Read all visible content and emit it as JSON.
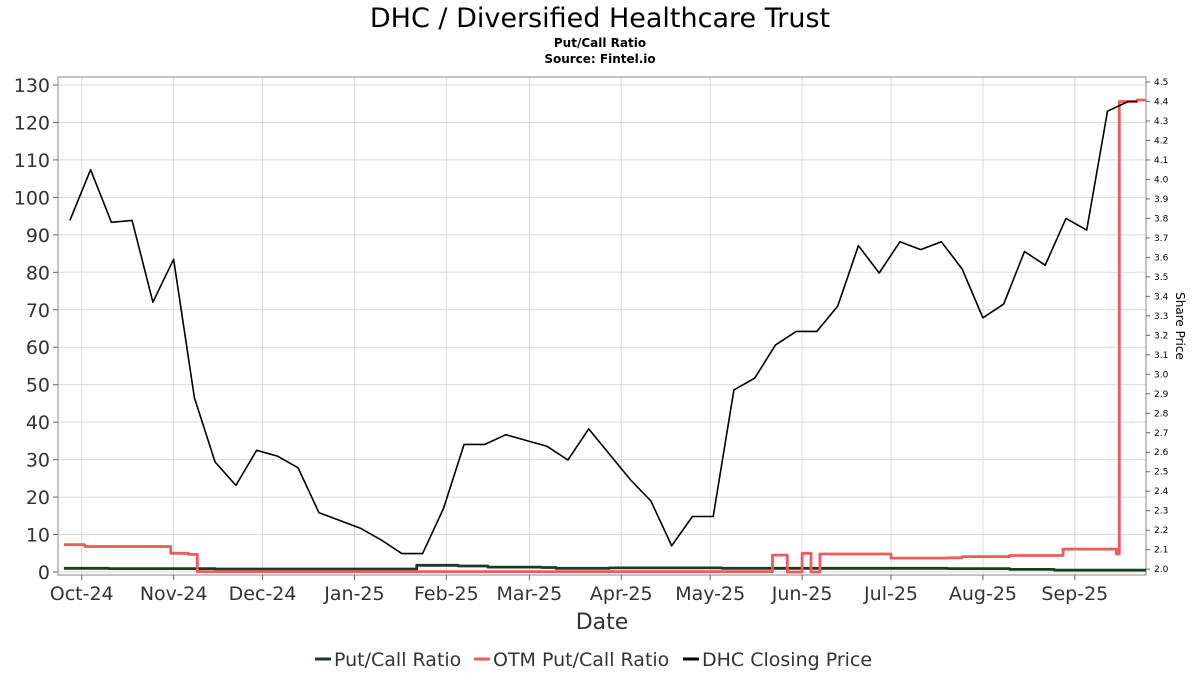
{
  "chart_data": {
    "type": "line",
    "title": "DHC / Diversified Healthcare Trust",
    "subtitle": "Put/Call Ratio",
    "source": "Source: Fintel.io",
    "xlabel": "Date",
    "ylabel_right": "Share Price",
    "grid": true,
    "legend_placement": "bottom-center",
    "x_ticks": [
      "Oct-24",
      "Nov-24",
      "Dec-24",
      "Jan-25",
      "Feb-25",
      "Mar-25",
      "Apr-25",
      "May-25",
      "Jun-25",
      "Jul-25",
      "Aug-25",
      "Sep-25"
    ],
    "x_tick_dates": [
      "2024-10-01",
      "2024-11-01",
      "2024-12-01",
      "2025-01-01",
      "2025-02-01",
      "2025-03-01",
      "2025-04-01",
      "2025-05-01",
      "2025-06-01",
      "2025-07-01",
      "2025-08-01",
      "2025-09-01"
    ],
    "xlim": [
      "2024-09-23",
      "2025-09-25"
    ],
    "left_axis": {
      "ylim": [
        0,
        130
      ],
      "ticks": [
        0,
        10,
        20,
        30,
        40,
        50,
        60,
        70,
        80,
        90,
        100,
        110,
        120,
        130
      ]
    },
    "right_axis": {
      "ylim": [
        1.97,
        4.5
      ],
      "ticks": [
        "2.0",
        "2.1",
        "2.2",
        "2.3",
        "2.4",
        "2.5",
        "2.6",
        "2.7",
        "2.8",
        "2.9",
        "3.0",
        "3.1",
        "3.2",
        "3.3",
        "3.4",
        "3.5",
        "3.6",
        "3.7",
        "3.8",
        "3.9",
        "4.0",
        "4.1",
        "4.2",
        "4.3",
        "4.4",
        "4.5"
      ]
    },
    "series": [
      {
        "name": "Put/Call Ratio",
        "axis": "left",
        "color": "#1e3a22",
        "step": true,
        "points": [
          [
            "2024-09-25",
            1.0
          ],
          [
            "2024-10-10",
            0.9
          ],
          [
            "2024-11-15",
            0.8
          ],
          [
            "2025-01-18",
            0.8
          ],
          [
            "2025-01-22",
            1.8
          ],
          [
            "2025-02-05",
            1.6
          ],
          [
            "2025-02-15",
            1.3
          ],
          [
            "2025-03-05",
            1.2
          ],
          [
            "2025-03-10",
            1.0
          ],
          [
            "2025-03-28",
            1.1
          ],
          [
            "2025-05-05",
            1.0
          ],
          [
            "2025-06-20",
            1.0
          ],
          [
            "2025-07-20",
            0.9
          ],
          [
            "2025-08-10",
            0.7
          ],
          [
            "2025-08-25",
            0.5
          ],
          [
            "2025-09-25",
            0.5
          ]
        ]
      },
      {
        "name": "OTM Put/Call Ratio",
        "axis": "left",
        "color": "#f05a5a",
        "step": true,
        "points": [
          [
            "2024-09-25",
            7.3
          ],
          [
            "2024-10-02",
            6.8
          ],
          [
            "2024-10-31",
            5.0
          ],
          [
            "2024-11-06",
            4.7
          ],
          [
            "2024-11-09",
            0.1
          ],
          [
            "2025-05-21",
            0.1
          ],
          [
            "2025-05-22",
            4.5
          ],
          [
            "2025-05-27",
            0.0
          ],
          [
            "2025-06-01",
            5.0
          ],
          [
            "2025-06-04",
            0.0
          ],
          [
            "2025-06-07",
            4.8
          ],
          [
            "2025-06-27",
            4.8
          ],
          [
            "2025-07-01",
            3.7
          ],
          [
            "2025-07-18",
            3.7
          ],
          [
            "2025-07-20",
            3.8
          ],
          [
            "2025-07-25",
            4.1
          ],
          [
            "2025-08-10",
            4.4
          ],
          [
            "2025-08-25",
            4.4
          ],
          [
            "2025-08-28",
            6.1
          ],
          [
            "2025-09-13",
            6.1
          ],
          [
            "2025-09-15",
            4.8
          ],
          [
            "2025-09-16",
            125.6
          ],
          [
            "2025-09-22",
            126.0
          ],
          [
            "2025-09-25",
            126.0
          ]
        ]
      },
      {
        "name": "DHC Closing Price",
        "axis": "right",
        "color": "#000000",
        "step": false,
        "points": [
          [
            "2024-09-27",
            3.79
          ],
          [
            "2024-10-04",
            4.05
          ],
          [
            "2024-10-11",
            3.78
          ],
          [
            "2024-10-18",
            3.79
          ],
          [
            "2024-10-25",
            3.37
          ],
          [
            "2024-11-01",
            3.59
          ],
          [
            "2024-11-08",
            2.88
          ],
          [
            "2024-11-15",
            2.55
          ],
          [
            "2024-11-22",
            2.43
          ],
          [
            "2024-11-29",
            2.61
          ],
          [
            "2024-12-06",
            2.58
          ],
          [
            "2024-12-13",
            2.52
          ],
          [
            "2024-12-20",
            2.29
          ],
          [
            "2025-01-03",
            2.21
          ],
          [
            "2025-01-10",
            2.15
          ],
          [
            "2025-01-17",
            2.08
          ],
          [
            "2025-01-24",
            2.08
          ],
          [
            "2025-01-31",
            2.31
          ],
          [
            "2025-02-07",
            2.64
          ],
          [
            "2025-02-14",
            2.64
          ],
          [
            "2025-02-21",
            2.69
          ],
          [
            "2025-03-07",
            2.63
          ],
          [
            "2025-03-14",
            2.56
          ],
          [
            "2025-03-21",
            2.72
          ],
          [
            "2025-04-04",
            2.46
          ],
          [
            "2025-04-11",
            2.35
          ],
          [
            "2025-04-18",
            2.12
          ],
          [
            "2025-04-25",
            2.27
          ],
          [
            "2025-05-02",
            2.27
          ],
          [
            "2025-05-09",
            2.92
          ],
          [
            "2025-05-16",
            2.98
          ],
          [
            "2025-05-23",
            3.15
          ],
          [
            "2025-05-30",
            3.22
          ],
          [
            "2025-06-06",
            3.22
          ],
          [
            "2025-06-13",
            3.35
          ],
          [
            "2025-06-20",
            3.66
          ],
          [
            "2025-06-27",
            3.52
          ],
          [
            "2025-07-04",
            3.68
          ],
          [
            "2025-07-11",
            3.64
          ],
          [
            "2025-07-18",
            3.68
          ],
          [
            "2025-07-25",
            3.54
          ],
          [
            "2025-08-01",
            3.29
          ],
          [
            "2025-08-08",
            3.36
          ],
          [
            "2025-08-15",
            3.63
          ],
          [
            "2025-08-22",
            3.56
          ],
          [
            "2025-08-29",
            3.8
          ],
          [
            "2025-09-05",
            3.74
          ],
          [
            "2025-09-12",
            4.35
          ],
          [
            "2025-09-19",
            4.4
          ],
          [
            "2025-09-22",
            4.4
          ]
        ]
      }
    ]
  }
}
